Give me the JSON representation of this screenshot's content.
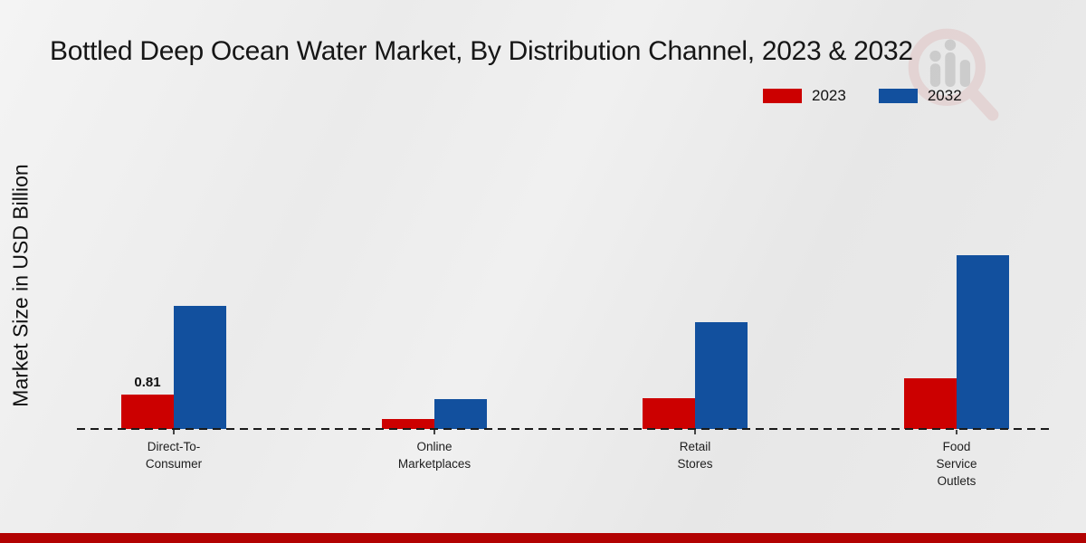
{
  "chart_data": {
    "type": "bar",
    "title": "Bottled Deep Ocean Water Market, By Distribution Channel, 2023 & 2032",
    "ylabel": "Market Size in USD Billion",
    "xlabel": "",
    "categories": [
      "Direct-To-Consumer",
      "Online Marketplaces",
      "Retail Stores",
      "Food Service Outlets"
    ],
    "tick_label_lines": [
      [
        "Direct-To-",
        "Consumer"
      ],
      [
        "Online",
        "Marketplaces"
      ],
      [
        "Retail",
        "Stores"
      ],
      [
        "Food",
        "Service",
        "Outlets"
      ]
    ],
    "series": [
      {
        "name": "2023",
        "color": "#cc0000",
        "values": [
          0.81,
          0.23,
          0.72,
          1.19
        ]
      },
      {
        "name": "2032",
        "color": "#12509e",
        "values": [
          2.9,
          0.7,
          2.52,
          4.09
        ]
      }
    ],
    "annotations": [
      {
        "series": "2023",
        "category": "Direct-To-Consumer",
        "text": "0.81"
      }
    ],
    "ylim": [
      0,
      4.5
    ],
    "grid": false,
    "legend_position": "top-right",
    "baseline_style": "dashed"
  },
  "branding": {
    "watermark_icon": "market-research-future-logo-watermark",
    "footer_bar_color": "#b20202"
  }
}
